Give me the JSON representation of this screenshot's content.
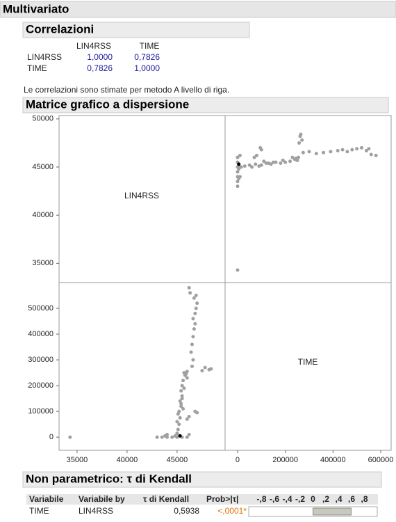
{
  "title": "Multivariato",
  "correlations": {
    "title": "Correlazioni",
    "columns": [
      "LIN4RSS",
      "TIME"
    ],
    "rows": [
      {
        "label": "LIN4RSS",
        "values": [
          "1,0000",
          "0,7826"
        ]
      },
      {
        "label": "TIME",
        "values": [
          "0,7826",
          "1,0000"
        ]
      }
    ],
    "note": "Le correlazioni sono stimate per metodo A livello di riga."
  },
  "scatter_matrix": {
    "title": "Matrice grafico a dispersione",
    "variables": [
      "LIN4RSS",
      "TIME"
    ],
    "lin4rss_ylim": [
      33000,
      50350
    ],
    "lin4rss_yticks": [
      35000,
      40000,
      45000,
      50000
    ],
    "time_ylim": [
      -51000,
      600000
    ],
    "time_yticks": [
      0,
      100000,
      200000,
      300000,
      400000,
      500000
    ],
    "lin4rss_xlim": [
      33200,
      49800
    ],
    "lin4rss_xticks": [
      35000,
      40000,
      45000
    ],
    "time_xlim": [
      -52400,
      643700
    ],
    "time_xticks": [
      0,
      200000,
      400000,
      600000
    ],
    "color": "#a0a0a0",
    "selected_color": "#000000",
    "selected": 58,
    "points": [
      [
        34300,
        0
      ],
      [
        43000,
        0
      ],
      [
        43500,
        0
      ],
      [
        44000,
        0
      ],
      [
        44500,
        0
      ],
      [
        45000,
        0
      ],
      [
        45500,
        0
      ],
      [
        46000,
        0
      ],
      [
        45200,
        5000
      ],
      [
        44800,
        5000
      ],
      [
        43800,
        5000
      ],
      [
        45000,
        15000
      ],
      [
        45100,
        30000
      ],
      [
        45200,
        50000
      ],
      [
        45000,
        60000
      ],
      [
        45300,
        75000
      ],
      [
        45100,
        90000
      ],
      [
        45200,
        100000
      ],
      [
        45600,
        110000
      ],
      [
        45400,
        120000
      ],
      [
        45300,
        140000
      ],
      [
        45500,
        160000
      ],
      [
        45400,
        180000
      ],
      [
        45500,
        200000
      ],
      [
        45600,
        220000
      ],
      [
        45800,
        240000
      ],
      [
        45700,
        250000
      ],
      [
        46000,
        255000
      ],
      [
        47500,
        258000
      ],
      [
        48200,
        262000
      ],
      [
        48400,
        265000
      ],
      [
        47800,
        270000
      ],
      [
        46500,
        275000
      ],
      [
        46600,
        300000
      ],
      [
        46400,
        330000
      ],
      [
        46500,
        360000
      ],
      [
        46600,
        390000
      ],
      [
        46700,
        420000
      ],
      [
        46800,
        440000
      ],
      [
        46600,
        460000
      ],
      [
        46800,
        480000
      ],
      [
        46900,
        500000
      ],
      [
        47000,
        520000
      ],
      [
        46700,
        540000
      ],
      [
        46900,
        550000
      ],
      [
        46300,
        560000
      ],
      [
        46200,
        580000
      ],
      [
        46000,
        70000
      ],
      [
        46200,
        80000
      ],
      [
        46800,
        100000
      ],
      [
        47000,
        95000
      ],
      [
        45700,
        190000
      ],
      [
        46000,
        230000
      ],
      [
        45900,
        245000
      ],
      [
        44000,
        10000
      ],
      [
        46200,
        10000
      ],
      [
        45400,
        130000
      ],
      [
        45500,
        150000
      ],
      [
        45300,
        5000
      ]
    ]
  },
  "kendall": {
    "title": "Non parametrico: τ di Kendall",
    "columns": [
      "Variabile",
      "Variabile by",
      "τ di Kendall",
      "Prob>|τ|"
    ],
    "bar_ticks": [
      {
        "value": -0.8,
        "label": "-,8"
      },
      {
        "value": -0.6,
        "label": "-,6"
      },
      {
        "value": -0.4,
        "label": "-,4"
      },
      {
        "value": -0.2,
        "label": "-,2"
      },
      0,
      {
        "value": 0.2,
        "label": ",2"
      },
      {
        "value": 0.4,
        "label": ",4"
      },
      {
        "value": 0.6,
        "label": ",6"
      },
      {
        "value": 0.8,
        "label": ",8"
      }
    ],
    "bar_lim": [
      -1,
      1
    ],
    "row": {
      "variable": "TIME",
      "by": "LIN4RSS",
      "tau": {
        "value": 0.5938,
        "label": "0,5938"
      },
      "prob": "<,0001*"
    }
  }
}
